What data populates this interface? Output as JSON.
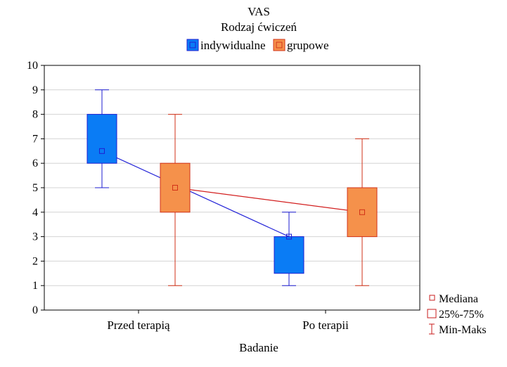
{
  "chart_data": {
    "type": "boxplot",
    "title": "VAS",
    "subtitle": "Rodzaj ćwiczeń",
    "xlabel": "Badanie",
    "ylabel": "",
    "ylim": [
      0,
      10
    ],
    "yticks": [
      "0",
      "1",
      "2",
      "3",
      "4",
      "5",
      "6",
      "7",
      "8",
      "9",
      "10"
    ],
    "categories": [
      "Przed terapią",
      "Po terapii"
    ],
    "grid": true,
    "legend_position": "top",
    "series": [
      {
        "name": "indywidualne",
        "fill": "#0a7cf5",
        "stroke": "#1e1ed2",
        "line": "#2626d8",
        "boxes": [
          {
            "min": 5,
            "q1": 6,
            "median": 6.5,
            "q3": 8,
            "max": 9
          },
          {
            "min": 1,
            "q1": 1.5,
            "median": 3,
            "q3": 3,
            "max": 4
          }
        ]
      },
      {
        "name": "grupowe",
        "fill": "#f5914b",
        "stroke": "#d23218",
        "line": "#d21e1e",
        "boxes": [
          {
            "min": 1,
            "q1": 4,
            "median": 5,
            "q3": 6,
            "max": 8
          },
          {
            "min": 1,
            "q1": 3,
            "median": 4,
            "q3": 5,
            "max": 7
          }
        ]
      }
    ],
    "stat_legend": [
      "Mediana",
      "25%-75%",
      "Min-Maks"
    ]
  }
}
